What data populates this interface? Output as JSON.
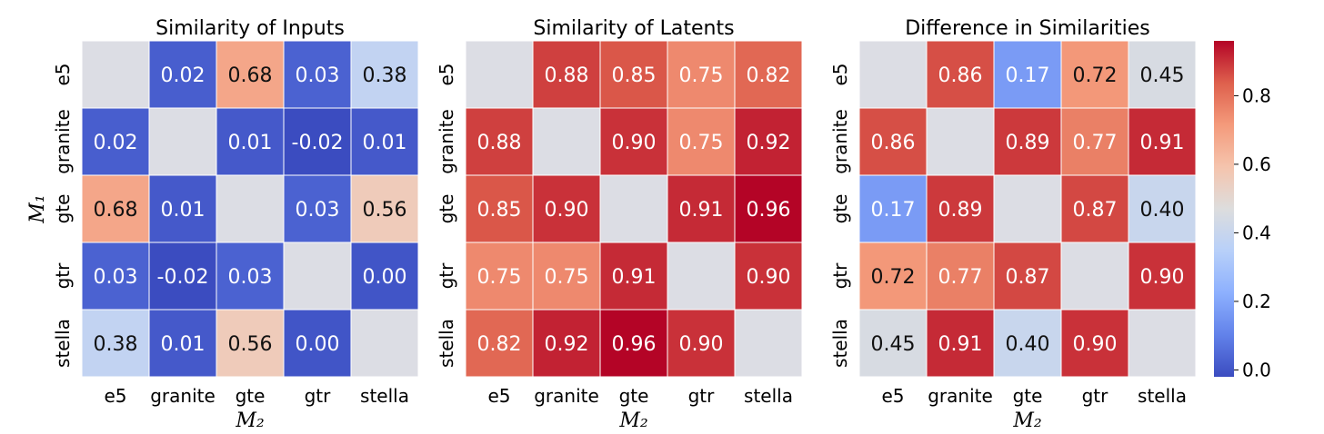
{
  "chart_data": [
    {
      "type": "heatmap",
      "title": "Similarity of Inputs",
      "x_categories": [
        "e5",
        "granite",
        "gte",
        "gtr",
        "stella"
      ],
      "y_categories": [
        "e5",
        "granite",
        "gte",
        "gtr",
        "stella"
      ],
      "xlabel": "M₂",
      "ylabel": "M₁",
      "values": [
        [
          null,
          0.02,
          0.68,
          0.03,
          0.38
        ],
        [
          0.02,
          null,
          0.01,
          -0.02,
          0.01
        ],
        [
          0.68,
          0.01,
          null,
          0.03,
          0.56
        ],
        [
          0.03,
          -0.02,
          0.03,
          null,
          0.0
        ],
        [
          0.38,
          0.01,
          0.56,
          0.0,
          null
        ]
      ],
      "labels": [
        [
          "",
          "0.02",
          "0.68",
          "0.03",
          "0.38"
        ],
        [
          "0.02",
          "",
          "0.01",
          "-0.02",
          "0.01"
        ],
        [
          "0.68",
          "0.01",
          "",
          "0.03",
          "0.56"
        ],
        [
          "0.03",
          "-0.02",
          "0.03",
          "",
          "0.00"
        ],
        [
          "0.38",
          "0.01",
          "0.56",
          "0.00",
          ""
        ]
      ]
    },
    {
      "type": "heatmap",
      "title": "Similarity of Latents",
      "x_categories": [
        "e5",
        "granite",
        "gte",
        "gtr",
        "stella"
      ],
      "y_categories": [
        "e5",
        "granite",
        "gte",
        "gtr",
        "stella"
      ],
      "xlabel": "M₂",
      "ylabel": "",
      "values": [
        [
          null,
          0.88,
          0.85,
          0.75,
          0.82
        ],
        [
          0.88,
          null,
          0.9,
          0.75,
          0.92
        ],
        [
          0.85,
          0.9,
          null,
          0.91,
          0.96
        ],
        [
          0.75,
          0.75,
          0.91,
          null,
          0.9
        ],
        [
          0.82,
          0.92,
          0.96,
          0.9,
          null
        ]
      ],
      "labels": [
        [
          "",
          "0.88",
          "0.85",
          "0.75",
          "0.82"
        ],
        [
          "0.88",
          "",
          "0.90",
          "0.75",
          "0.92"
        ],
        [
          "0.85",
          "0.90",
          "",
          "0.91",
          "0.96"
        ],
        [
          "0.75",
          "0.75",
          "0.91",
          "",
          "0.90"
        ],
        [
          "0.82",
          "0.92",
          "0.96",
          "0.90",
          ""
        ]
      ]
    },
    {
      "type": "heatmap",
      "title": "Difference in Similarities",
      "x_categories": [
        "e5",
        "granite",
        "gte",
        "gtr",
        "stella"
      ],
      "y_categories": [
        "e5",
        "granite",
        "gte",
        "gtr",
        "stella"
      ],
      "xlabel": "M₂",
      "ylabel": "",
      "values": [
        [
          null,
          0.86,
          0.17,
          0.72,
          0.45
        ],
        [
          0.86,
          null,
          0.89,
          0.77,
          0.91
        ],
        [
          0.17,
          0.89,
          null,
          0.87,
          0.4
        ],
        [
          0.72,
          0.77,
          0.87,
          null,
          0.9
        ],
        [
          0.45,
          0.91,
          0.4,
          0.9,
          null
        ]
      ],
      "labels": [
        [
          "",
          "0.86",
          "0.17",
          "0.72",
          "0.45"
        ],
        [
          "0.86",
          "",
          "0.89",
          "0.77",
          "0.91"
        ],
        [
          "0.17",
          "0.89",
          "",
          "0.87",
          "0.40"
        ],
        [
          "0.72",
          "0.77",
          "0.87",
          "",
          "0.90"
        ],
        [
          "0.45",
          "0.91",
          "0.40",
          "0.90",
          ""
        ]
      ]
    }
  ],
  "colorbar": {
    "colormap": "coolwarm",
    "vmin": -0.02,
    "vmax": 0.96,
    "ticks": [
      0.0,
      0.2,
      0.4,
      0.6,
      0.8
    ],
    "tick_labels": [
      "0.0",
      "0.2",
      "0.4",
      "0.6",
      "0.8"
    ]
  },
  "diagonal_color": "#dcdde4"
}
